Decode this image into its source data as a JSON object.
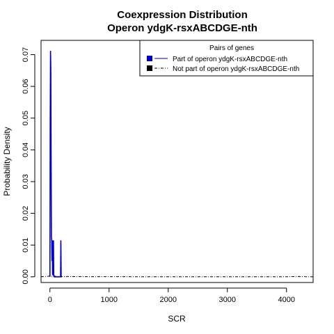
{
  "chart_data": {
    "type": "line",
    "title_lines": [
      "Coexpression Distribution",
      "Operon ydgK-rsxABCDGE-nth"
    ],
    "xlabel": "SCR",
    "ylabel": "Probability Density",
    "xlim": [
      -150,
      4450
    ],
    "ylim": [
      -0.0018,
      0.0745
    ],
    "x_ticks": [
      0,
      1000,
      2000,
      3000,
      4000
    ],
    "y_ticks": [
      0.0,
      0.01,
      0.02,
      0.03,
      0.04,
      0.05,
      0.06,
      0.07
    ],
    "x_tick_labels": [
      "0",
      "1000",
      "2000",
      "3000",
      "4000"
    ],
    "y_tick_labels": [
      "0.00",
      "0.01",
      "0.02",
      "0.03",
      "0.04",
      "0.05",
      "0.06",
      "0.07"
    ],
    "grid": false,
    "legend": {
      "title": "Pairs of genes",
      "placement": "top-right",
      "entries": [
        "Part of operon ydgK-rsxABCDGE-nth",
        "Not part of operon ydgK-rsxABCDGE-nth"
      ]
    },
    "series": [
      {
        "name": "Part of operon ydgK-rsxABCDGE-nth",
        "color": "#0000cc",
        "style": "solid",
        "x": [
          0,
          5,
          10,
          15,
          20,
          25,
          30,
          35,
          40,
          45,
          50,
          55,
          60,
          65,
          70,
          75,
          80,
          90,
          100,
          120,
          140,
          160,
          170,
          180,
          185,
          190,
          195,
          200
        ],
        "y": [
          0.0,
          0.0485,
          0.0712,
          0.066,
          0.0378,
          0.0125,
          0.0115,
          0.005,
          0.0115,
          0.0005,
          0.0115,
          0.0005,
          0.0115,
          0.0,
          0.0005,
          0.0,
          0.0,
          0.0,
          0.0,
          0.0,
          0.0,
          0.0,
          0.0,
          0.0,
          0.0115,
          0.0,
          0.0,
          0.0
        ]
      },
      {
        "name": "Not part of operon ydgK-rsxABCDGE-nth",
        "color": "#000000",
        "style": "dashdot",
        "x": [
          -150,
          0,
          200,
          500,
          1000,
          1500,
          2000,
          2500,
          3000,
          3500,
          4000,
          4200,
          4300,
          4450
        ],
        "y": [
          0.0,
          0.0002,
          0.0001,
          5e-05,
          3e-05,
          2e-05,
          2e-05,
          1e-05,
          1e-05,
          1e-05,
          2e-05,
          0.0001,
          3e-05,
          0.0
        ]
      }
    ]
  }
}
